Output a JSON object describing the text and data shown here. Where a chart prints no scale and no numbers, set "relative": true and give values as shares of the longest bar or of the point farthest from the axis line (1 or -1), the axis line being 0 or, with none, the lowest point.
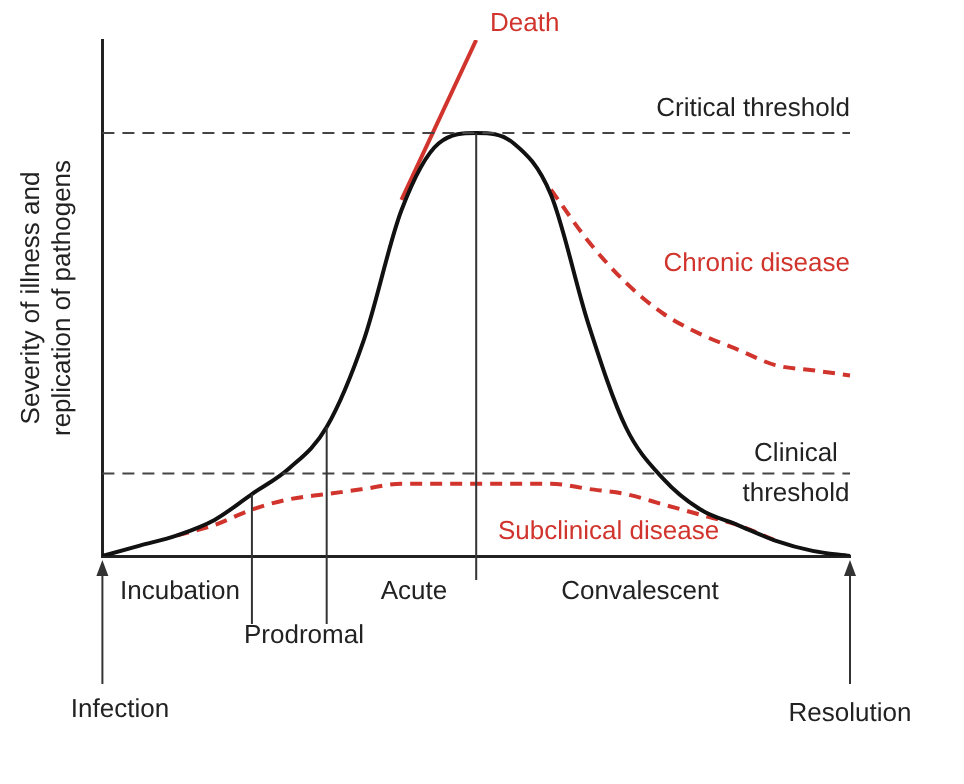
{
  "chart_data": {
    "type": "line",
    "relative": true,
    "ylabel": "Severity of illness and replication of pathogens",
    "categories": [
      null,
      null,
      null,
      null,
      null,
      null,
      null,
      null,
      null,
      null,
      null,
      null,
      null,
      null,
      null,
      null,
      null,
      null,
      null,
      null,
      null
    ],
    "series": [
      {
        "color": "#111111",
        "values": [
          0,
          0.02,
          0.04,
          0.07,
          0.12,
          0.17,
          0.25,
          0.42,
          0.67,
          0.8,
          0.82,
          0.8,
          0.7,
          0.45,
          0.25,
          0.15,
          0.09,
          0.06,
          0.03,
          0.01,
          0
        ]
      },
      {
        "name": "Death",
        "color": "#d0342c",
        "values": [
          null,
          null,
          null,
          null,
          null,
          null,
          null,
          null,
          0.69,
          null,
          1,
          null,
          null,
          null,
          null,
          null,
          null,
          null,
          null,
          null,
          null
        ]
      },
      {
        "name": "Chronic disease",
        "color": "#d0342c",
        "line_style": "dashed",
        "values": [
          null,
          null,
          null,
          null,
          null,
          null,
          null,
          null,
          null,
          null,
          null,
          null,
          0.71,
          0.61,
          0.53,
          0.47,
          0.43,
          0.4,
          0.37,
          0.36,
          0.35
        ]
      },
      {
        "name": "Subclinical disease",
        "color": "#d0342c",
        "line_style": "dashed",
        "values": [
          null,
          null,
          0.04,
          0.06,
          0.09,
          0.11,
          0.12,
          0.13,
          0.14,
          0.14,
          0.14,
          0.14,
          0.14,
          0.13,
          0.12,
          0.1,
          0.08,
          0.06,
          0.03,
          null,
          null
        ]
      }
    ],
    "ref_lines": [
      {
        "axis": "y",
        "value": 0.82,
        "label": "Critical threshold",
        "line_style": "dashed",
        "color": "#444444"
      },
      {
        "axis": "y",
        "value": 0.16,
        "label": "Clinical threshold",
        "line_style": "dashed",
        "color": "#444444"
      }
    ],
    "annotations": [
      "Incubation",
      "Prodromal",
      "Acute",
      "Convalescent",
      "Infection",
      "Resolution"
    ],
    "legend": false,
    "grid": false,
    "marker": "none"
  }
}
